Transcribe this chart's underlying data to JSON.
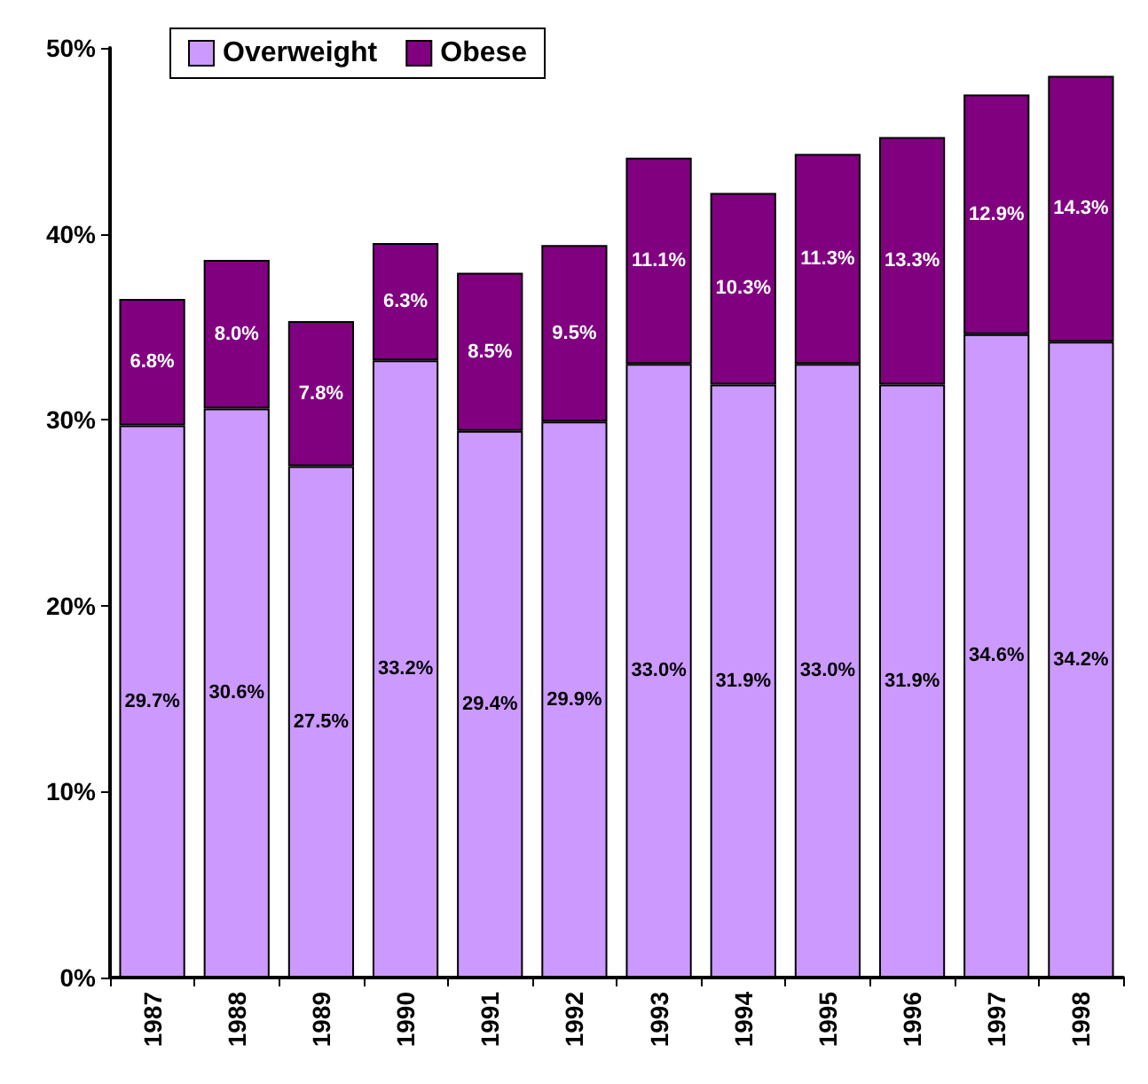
{
  "chart_data": {
    "type": "bar",
    "stacked": true,
    "categories": [
      "1987",
      "1988",
      "1989",
      "1990",
      "1991",
      "1992",
      "1993",
      "1994",
      "1995",
      "1996",
      "1997",
      "1998"
    ],
    "series": [
      {
        "name": "Overweight",
        "color": "#cc99ff",
        "values": [
          29.7,
          30.6,
          27.5,
          33.2,
          29.4,
          29.9,
          33.0,
          31.9,
          33.0,
          31.9,
          34.6,
          34.2
        ],
        "value_labels": [
          "29.7%",
          "30.6%",
          "27.5%",
          "33.2%",
          "29.4%",
          "29.9%",
          "33.0%",
          "31.9%",
          "33.0%",
          "31.9%",
          "34.6%",
          "34.2%"
        ]
      },
      {
        "name": "Obese",
        "color": "#800080",
        "values": [
          6.8,
          8.0,
          7.8,
          6.3,
          8.5,
          9.5,
          11.1,
          10.3,
          11.3,
          13.3,
          12.9,
          14.3
        ],
        "value_labels": [
          "6.8%",
          "8.0%",
          "7.8%",
          "6.3%",
          "8.5%",
          "9.5%",
          "11.1%",
          "10.3%",
          "11.3%",
          "13.3%",
          "12.9%",
          "14.3%"
        ]
      }
    ],
    "ylim": [
      0,
      50
    ],
    "yticks": [
      {
        "value": 0,
        "label": "0%"
      },
      {
        "value": 10,
        "label": "10%"
      },
      {
        "value": 20,
        "label": "20%"
      },
      {
        "value": 30,
        "label": "30%"
      },
      {
        "value": 40,
        "label": "40%"
      },
      {
        "value": 50,
        "label": "50%"
      }
    ],
    "grid": false,
    "legend": "top left"
  }
}
